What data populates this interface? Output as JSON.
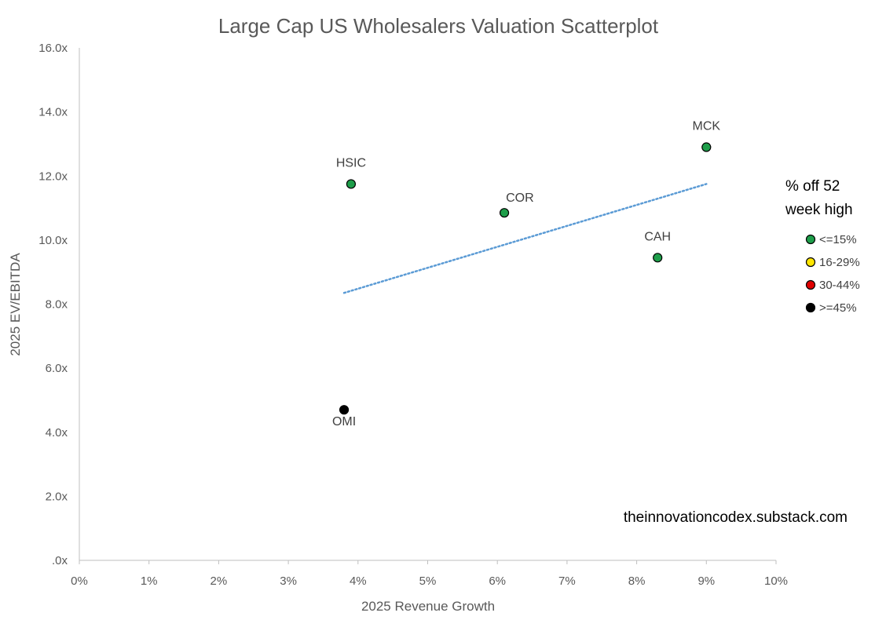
{
  "chart_data": {
    "type": "scatter",
    "title": "Large Cap US Wholesalers Valuation Scatterplot",
    "xlabel": "2025 Revenue Growth",
    "ylabel": "2025 EV/EBITDA",
    "xlim": [
      0,
      10
    ],
    "ylim": [
      0,
      16
    ],
    "x_ticks": [
      0,
      1,
      2,
      3,
      4,
      5,
      6,
      7,
      8,
      9,
      10
    ],
    "x_tick_labels": [
      "0%",
      "1%",
      "2%",
      "3%",
      "4%",
      "5%",
      "6%",
      "7%",
      "8%",
      "9%",
      "10%"
    ],
    "y_ticks": [
      0,
      2,
      4,
      6,
      8,
      10,
      12,
      14,
      16
    ],
    "y_tick_labels": [
      ".0x",
      "2.0x",
      "4.0x",
      "6.0x",
      "8.0x",
      "10.0x",
      "12.0x",
      "14.0x",
      "16.0x"
    ],
    "grid": false,
    "points": [
      {
        "label": "MCK",
        "x": 9.0,
        "y": 12.9,
        "category": "<=15%",
        "label_pos": "above"
      },
      {
        "label": "HSIC",
        "x": 3.9,
        "y": 11.75,
        "category": "<=15%",
        "label_pos": "above"
      },
      {
        "label": "COR",
        "x": 6.1,
        "y": 10.85,
        "category": "<=15%",
        "label_pos": "above-right"
      },
      {
        "label": "CAH",
        "x": 8.3,
        "y": 9.45,
        "category": "<=15%",
        "label_pos": "above"
      },
      {
        "label": "OMI",
        "x": 3.8,
        "y": 4.7,
        "category": ">=45%",
        "label_pos": "below"
      }
    ],
    "trendline": {
      "x": [
        3.8,
        9.0
      ],
      "y": [
        8.35,
        11.75
      ],
      "style": "dotted",
      "color": "#5b9bd5"
    },
    "legend": {
      "title_lines": [
        "% off 52",
        "week high"
      ],
      "position": "right",
      "items": [
        {
          "label": "<=15%",
          "color": "#1e9e4a"
        },
        {
          "label": "16-29%",
          "color": "#ffe600"
        },
        {
          "label": "30-44%",
          "color": "#e00000"
        },
        {
          "label": ">=45%",
          "color": "#000000"
        }
      ]
    }
  },
  "source_text": "theinnovationcodex.substack.com"
}
